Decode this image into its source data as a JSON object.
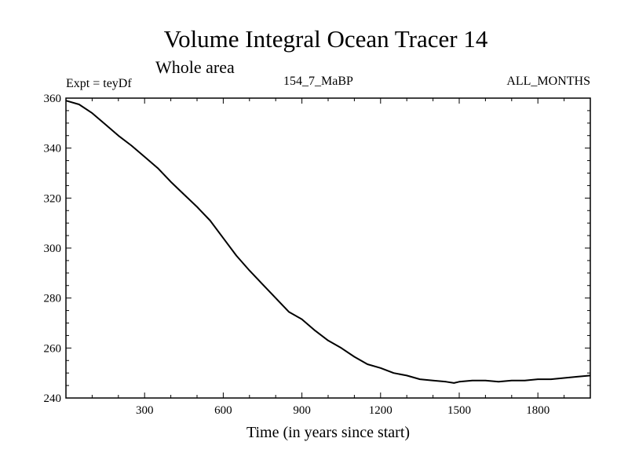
{
  "chart_data": {
    "type": "line",
    "title": "Volume Integral Ocean Tracer 14",
    "subtitle": "Whole area",
    "annotations": {
      "experiment": "Expt = teyDf",
      "run_id": "154_7_MaBP",
      "months": "ALL_MONTHS"
    },
    "xlabel": "Time (in years since start)",
    "ylabel": "",
    "xlim": [
      0,
      2000
    ],
    "ylim": [
      240,
      360
    ],
    "x_ticks": [
      300,
      600,
      900,
      1200,
      1500,
      1800
    ],
    "y_ticks": [
      240,
      260,
      280,
      300,
      320,
      340,
      360
    ],
    "grid": false,
    "line_color": "#000000",
    "series": [
      {
        "x": [
          0,
          50,
          100,
          150,
          200,
          250,
          300,
          350,
          400,
          450,
          500,
          550,
          600,
          650,
          700,
          750,
          800,
          850,
          900,
          950,
          1000,
          1050,
          1100,
          1150,
          1200,
          1250,
          1300,
          1350,
          1400,
          1450,
          1480,
          1500,
          1550,
          1600,
          1650,
          1700,
          1750,
          1800,
          1850,
          1900,
          1950,
          2000
        ],
        "values": [
          359,
          357.5,
          354,
          349.5,
          345,
          341,
          336.5,
          332,
          326.5,
          321.5,
          316.5,
          311,
          304,
          297,
          291,
          285.5,
          280,
          274.5,
          271.5,
          267,
          263,
          260,
          256.5,
          253.5,
          252,
          250,
          249,
          247.5,
          247,
          246.5,
          246,
          246.5,
          247,
          247,
          246.5,
          247,
          247,
          247.5,
          247.5,
          248,
          248.5,
          249
        ]
      }
    ]
  }
}
